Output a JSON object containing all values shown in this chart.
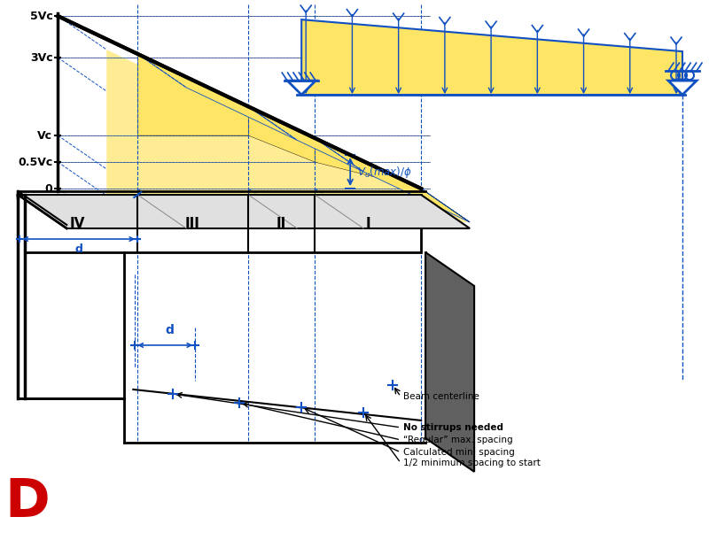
{
  "bg_color": "#ffffff",
  "yellow": "#FFE566",
  "yellow_light": "#FFF0A0",
  "blue": "#1050C0",
  "black": "#000000",
  "gray_dark": "#404040",
  "gray_mid": "#888888",
  "gray_light": "#C8C8C8",
  "red": "#CC0000",
  "axis_labels": [
    "5Vc",
    "3Vc",
    "Vc",
    "0.5Vc",
    "0"
  ],
  "zone_labels": [
    "IV",
    "III",
    "II",
    "I"
  ],
  "annot_bc": "Beam centerline",
  "annot_lines": [
    "No stirrups needed",
    "“Regular” max. spacing",
    "Calculated min. spacing",
    "1/2 minimum spacing to start"
  ]
}
